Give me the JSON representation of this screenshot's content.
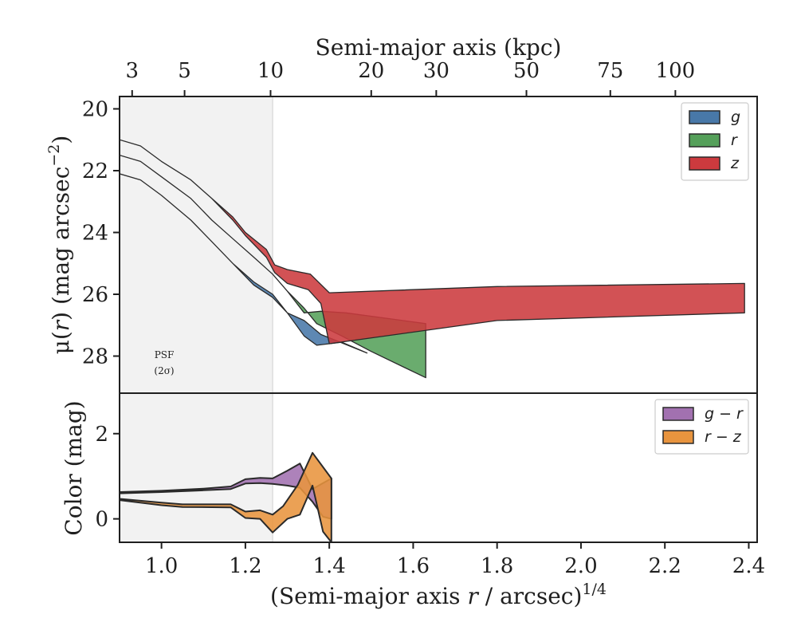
{
  "figure": {
    "top_axis_label": "Semi-major axis (kpc)",
    "x_axis_label_main": "(Semi-major axis ",
    "x_axis_label_var": "r",
    "x_axis_label_tail": " / arcsec)",
    "x_axis_label_sup": "1/4",
    "psf_line1": "PSF",
    "psf_line2": "(2σ)"
  },
  "chart_data": [
    {
      "type": "area",
      "panel": "surface-brightness",
      "ylabel_pre": "μ(",
      "ylabel_var": "r",
      "ylabel_post": ") (mag arcsec",
      "ylabel_sup": "−2",
      "ylabel_close": ")",
      "xlim": [
        0.9,
        2.42
      ],
      "ylim": [
        29.2,
        19.6
      ],
      "y_inverted": true,
      "yticks": [
        20,
        22,
        24,
        26,
        28
      ],
      "psf_shade_x": [
        0.9,
        1.265
      ],
      "legend_position": "top-right",
      "top_axis": {
        "label": "Semi-major axis (kpc)",
        "ticks": [
          {
            "label": "3",
            "x": 0.93
          },
          {
            "label": "5",
            "x": 1.055
          },
          {
            "label": "10",
            "x": 1.26
          },
          {
            "label": "20",
            "x": 1.5
          },
          {
            "label": "30",
            "x": 1.655
          },
          {
            "label": "50",
            "x": 1.87
          },
          {
            "label": "75",
            "x": 2.07
          },
          {
            "label": "100",
            "x": 2.225
          }
        ]
      },
      "series": [
        {
          "name": "g",
          "color": "#4878a8",
          "upper": [
            [
              0.9,
              22.1
            ],
            [
              0.95,
              22.3
            ],
            [
              1.0,
              22.8
            ],
            [
              1.07,
              23.6
            ],
            [
              1.12,
              24.3
            ],
            [
              1.17,
              25.0
            ],
            [
              1.22,
              25.6
            ],
            [
              1.265,
              26.0
            ],
            [
              1.3,
              26.6
            ],
            [
              1.34,
              26.85
            ],
            [
              1.38,
              27.3
            ],
            [
              1.49,
              27.9
            ]
          ],
          "lower": [
            [
              0.9,
              22.1
            ],
            [
              0.95,
              22.3
            ],
            [
              1.0,
              22.8
            ],
            [
              1.07,
              23.6
            ],
            [
              1.12,
              24.3
            ],
            [
              1.17,
              25.0
            ],
            [
              1.22,
              25.7
            ],
            [
              1.265,
              26.1
            ],
            [
              1.3,
              26.6
            ],
            [
              1.34,
              27.35
            ],
            [
              1.37,
              27.65
            ],
            [
              1.43,
              27.55
            ],
            [
              1.49,
              27.9
            ]
          ]
        },
        {
          "name": "r",
          "color": "#55a05a",
          "upper": [
            [
              0.9,
              21.5
            ],
            [
              0.95,
              21.7
            ],
            [
              1.0,
              22.2
            ],
            [
              1.07,
              22.9
            ],
            [
              1.12,
              23.6
            ],
            [
              1.17,
              24.2
            ],
            [
              1.22,
              24.8
            ],
            [
              1.265,
              25.35
            ],
            [
              1.3,
              25.9
            ],
            [
              1.34,
              26.6
            ],
            [
              1.38,
              26.55
            ],
            [
              1.44,
              26.6
            ],
            [
              1.63,
              26.95
            ]
          ],
          "lower": [
            [
              0.9,
              21.5
            ],
            [
              0.95,
              21.7
            ],
            [
              1.0,
              22.2
            ],
            [
              1.07,
              22.9
            ],
            [
              1.12,
              23.6
            ],
            [
              1.17,
              24.2
            ],
            [
              1.22,
              24.8
            ],
            [
              1.265,
              25.35
            ],
            [
              1.3,
              25.9
            ],
            [
              1.34,
              26.45
            ],
            [
              1.37,
              26.95
            ],
            [
              1.43,
              27.35
            ],
            [
              1.5,
              27.85
            ],
            [
              1.63,
              28.7
            ]
          ]
        },
        {
          "name": "z",
          "color": "#cc3a3e",
          "upper": [
            [
              0.9,
              21.0
            ],
            [
              0.95,
              21.2
            ],
            [
              1.0,
              21.7
            ],
            [
              1.07,
              22.3
            ],
            [
              1.12,
              22.9
            ],
            [
              1.17,
              23.5
            ],
            [
              1.2,
              24.0
            ],
            [
              1.25,
              24.55
            ],
            [
              1.27,
              25.05
            ],
            [
              1.3,
              25.2
            ],
            [
              1.355,
              25.35
            ],
            [
              1.4,
              25.95
            ],
            [
              1.8,
              25.75
            ],
            [
              2.39,
              25.65
            ]
          ],
          "lower": [
            [
              0.9,
              21.0
            ],
            [
              0.95,
              21.2
            ],
            [
              1.0,
              21.7
            ],
            [
              1.07,
              22.3
            ],
            [
              1.12,
              22.9
            ],
            [
              1.17,
              23.6
            ],
            [
              1.2,
              24.1
            ],
            [
              1.25,
              24.8
            ],
            [
              1.27,
              25.3
            ],
            [
              1.3,
              25.65
            ],
            [
              1.35,
              25.85
            ],
            [
              1.38,
              26.3
            ],
            [
              1.4,
              27.6
            ],
            [
              1.8,
              26.85
            ],
            [
              2.39,
              26.6
            ]
          ]
        }
      ]
    },
    {
      "type": "area",
      "panel": "color",
      "ylabel": "Color (mag)",
      "xlim": [
        0.9,
        2.42
      ],
      "ylim": [
        -0.55,
        2.95
      ],
      "yticks": [
        0,
        2
      ],
      "xticks": [
        1.0,
        1.2,
        1.4,
        1.6,
        1.8,
        2.0,
        2.2,
        2.4
      ],
      "xtick_labels": [
        "1.0",
        "1.2",
        "1.4",
        "1.6",
        "1.8",
        "2.0",
        "2.2",
        "2.4"
      ],
      "psf_shade_x": [
        0.9,
        1.265
      ],
      "legend_position": "top-right",
      "series": [
        {
          "name": "g − r",
          "color": "#a271b0",
          "upper": [
            [
              0.9,
              0.63
            ],
            [
              1.0,
              0.66
            ],
            [
              1.1,
              0.71
            ],
            [
              1.165,
              0.76
            ],
            [
              1.2,
              0.93
            ],
            [
              1.235,
              0.96
            ],
            [
              1.265,
              0.95
            ],
            [
              1.3,
              1.13
            ],
            [
              1.33,
              1.3
            ],
            [
              1.36,
              0.7
            ],
            [
              1.405,
              0.95
            ]
          ],
          "lower": [
            [
              0.9,
              0.6
            ],
            [
              1.0,
              0.63
            ],
            [
              1.1,
              0.67
            ],
            [
              1.165,
              0.7
            ],
            [
              1.2,
              0.83
            ],
            [
              1.235,
              0.84
            ],
            [
              1.265,
              0.82
            ],
            [
              1.3,
              0.78
            ],
            [
              1.33,
              0.73
            ],
            [
              1.36,
              0.4
            ],
            [
              1.385,
              0.05
            ],
            [
              1.405,
              0.0
            ]
          ]
        },
        {
          "name": "r − z",
          "color": "#e8943e",
          "upper": [
            [
              0.9,
              0.47
            ],
            [
              1.0,
              0.38
            ],
            [
              1.05,
              0.34
            ],
            [
              1.165,
              0.34
            ],
            [
              1.2,
              0.17
            ],
            [
              1.235,
              0.2
            ],
            [
              1.265,
              0.1
            ],
            [
              1.29,
              0.3
            ],
            [
              1.325,
              0.8
            ],
            [
              1.36,
              1.55
            ],
            [
              1.405,
              0.95
            ]
          ],
          "lower": [
            [
              0.9,
              0.44
            ],
            [
              1.0,
              0.32
            ],
            [
              1.05,
              0.28
            ],
            [
              1.165,
              0.27
            ],
            [
              1.2,
              0.02
            ],
            [
              1.235,
              0.0
            ],
            [
              1.265,
              -0.32
            ],
            [
              1.3,
              0.0
            ],
            [
              1.33,
              0.1
            ],
            [
              1.36,
              0.78
            ],
            [
              1.385,
              -0.3
            ],
            [
              1.405,
              -0.55
            ]
          ]
        }
      ]
    }
  ]
}
